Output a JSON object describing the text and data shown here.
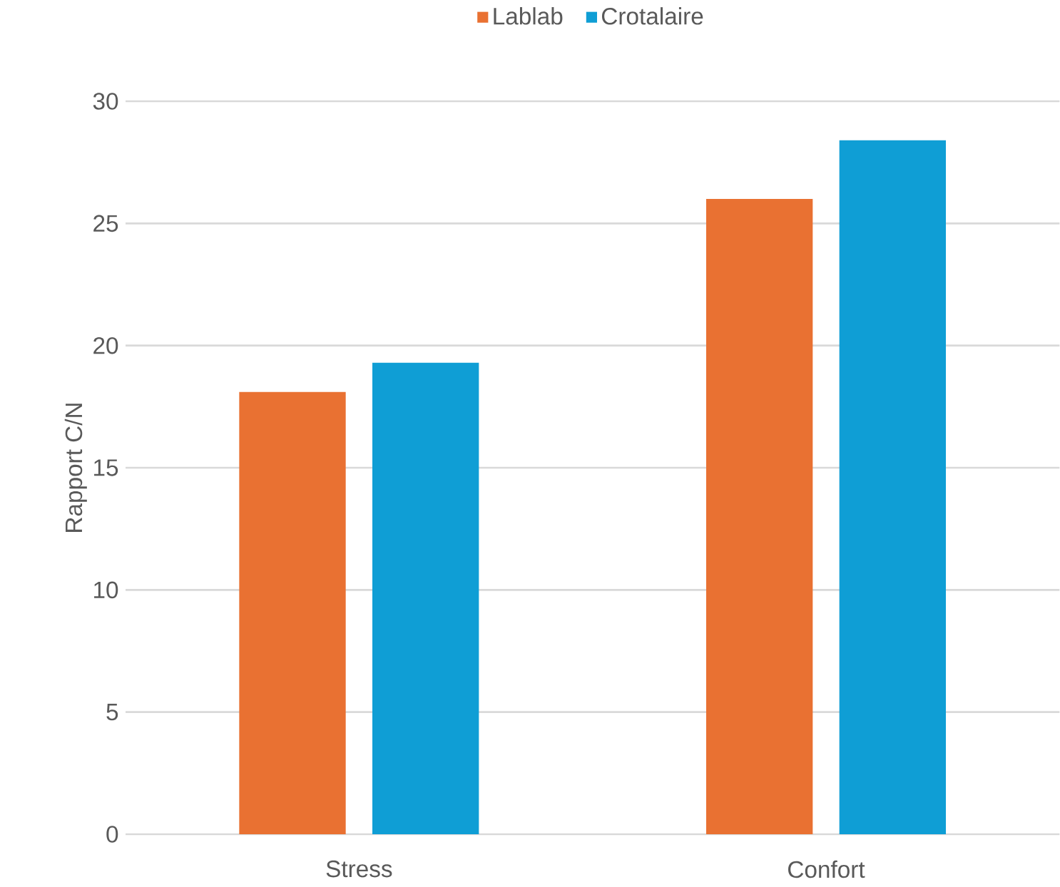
{
  "chart_data": {
    "type": "bar",
    "ylabel": "Rapport C/N",
    "categories": [
      "Stress",
      "Confort"
    ],
    "series": [
      {
        "name": "Lablab",
        "color": "#e97132",
        "values": [
          18.1,
          26.0
        ]
      },
      {
        "name": "Crotalaire",
        "color": "#0f9ed5",
        "values": [
          19.3,
          28.4
        ]
      }
    ],
    "ylim": [
      0,
      30
    ],
    "yticks": [
      0,
      5,
      10,
      15,
      20,
      25,
      30
    ],
    "grid": "y",
    "legend": "top"
  }
}
